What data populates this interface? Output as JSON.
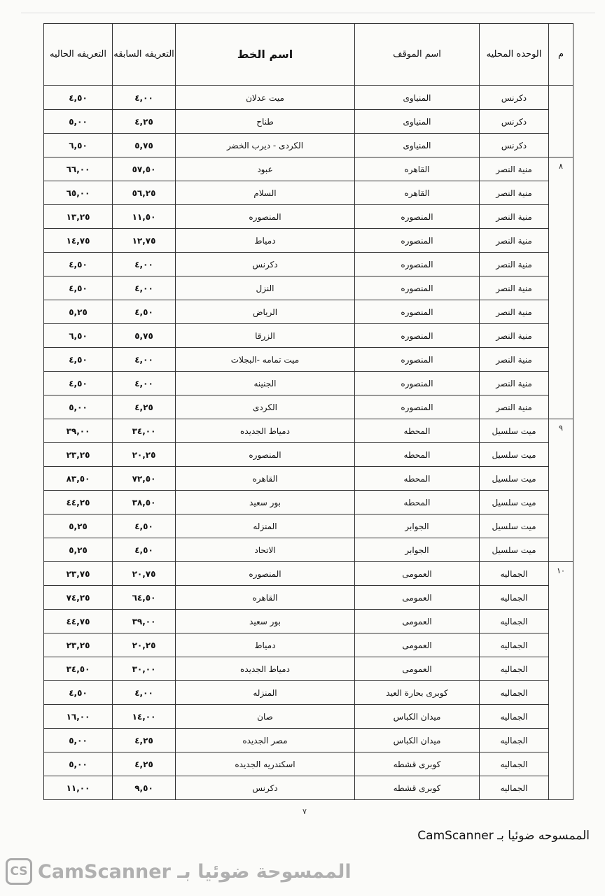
{
  "table": {
    "headers": {
      "m": "م",
      "unit": "الوحده المحليه",
      "stop": "اسم الموقف",
      "line": "اسم الخط",
      "prev": "التعريفه السابقه",
      "curr": "التعريفه الحاليه"
    },
    "groups": [
      {
        "m": "",
        "rows": [
          [
            "دكرنس",
            "المنياوى",
            "ميت عدلان",
            "٤,٠٠",
            "٤,٥٠"
          ],
          [
            "دكرنس",
            "المنياوى",
            "طناح",
            "٤,٢٥",
            "٥,٠٠"
          ],
          [
            "دكرنس",
            "المنياوى",
            "الكردى - ديرب الخضر",
            "٥,٧٥",
            "٦,٥٠"
          ]
        ]
      },
      {
        "m": "٨",
        "rows": [
          [
            "منية النصر",
            "القاهره",
            "عبود",
            "٥٧,٥٠",
            "٦٦,٠٠"
          ],
          [
            "منية النصر",
            "القاهره",
            "السلام",
            "٥٦,٢٥",
            "٦٥,٠٠"
          ],
          [
            "منية النصر",
            "المنصوره",
            "المنصوره",
            "١١,٥٠",
            "١٣,٢٥"
          ],
          [
            "منية النصر",
            "المنصوره",
            "دمياط",
            "١٢,٧٥",
            "١٤,٧٥"
          ],
          [
            "منية النصر",
            "المنصوره",
            "دكرنس",
            "٤,٠٠",
            "٤,٥٠"
          ],
          [
            "منية النصر",
            "المنصوره",
            "النزل",
            "٤,٠٠",
            "٤,٥٠"
          ],
          [
            "منية النصر",
            "المنصوره",
            "الرياض",
            "٤,٥٠",
            "٥,٢٥"
          ],
          [
            "منية النصر",
            "المنصوره",
            "الزرقا",
            "٥,٧٥",
            "٦,٥٠"
          ],
          [
            "منية النصر",
            "المنصوره",
            "ميت تمامه -البجلات",
            "٤,٠٠",
            "٤,٥٠"
          ],
          [
            "منية النصر",
            "المنصوره",
            "الجنينه",
            "٤,٠٠",
            "٤,٥٠"
          ],
          [
            "منية النصر",
            "المنصوره",
            "الكردى",
            "٤,٢٥",
            "٥,٠٠"
          ]
        ]
      },
      {
        "m": "٩",
        "rows": [
          [
            "ميت سلسيل",
            "المحطه",
            "دمياط الجديده",
            "٣٤,٠٠",
            "٣٩,٠٠"
          ],
          [
            "ميت سلسيل",
            "المحطه",
            "المنصوره",
            "٢٠,٢٥",
            "٢٣,٢٥"
          ],
          [
            "ميت سلسيل",
            "المحطه",
            "القاهره",
            "٧٢,٥٠",
            "٨٣,٥٠"
          ],
          [
            "ميت سلسيل",
            "المحطه",
            "بور سعيد",
            "٣٨,٥٠",
            "٤٤,٢٥"
          ],
          [
            "ميت سلسيل",
            "الجوابر",
            "المنزله",
            "٤,٥٠",
            "٥,٢٥"
          ],
          [
            "ميت سلسيل",
            "الجوابر",
            "الاتحاد",
            "٤,٥٠",
            "٥,٢٥"
          ]
        ]
      },
      {
        "m": "١٠",
        "rows": [
          [
            "الجماليه",
            "العمومى",
            "المنصوره",
            "٢٠,٧٥",
            "٢٣,٧٥"
          ],
          [
            "الجماليه",
            "العمومى",
            "القاهره",
            "٦٤,٥٠",
            "٧٤,٢٥"
          ],
          [
            "الجماليه",
            "العمومى",
            "بور سعيد",
            "٣٩,٠٠",
            "٤٤,٧٥"
          ],
          [
            "الجماليه",
            "العمومى",
            "دمياط",
            "٢٠,٢٥",
            "٢٣,٢٥"
          ],
          [
            "الجماليه",
            "العمومى",
            "دمياط الجديده",
            "٣٠,٠٠",
            "٣٤,٥٠"
          ],
          [
            "الجماليه",
            "كوبرى بحارة العيد",
            "المنزله",
            "٤,٠٠",
            "٤,٥٠"
          ],
          [
            "الجماليه",
            "ميدان الكباس",
            "صان",
            "١٤,٠٠",
            "١٦,٠٠"
          ],
          [
            "الجماليه",
            "ميدان الكباس",
            "مصر الجديده",
            "٤,٢٥",
            "٥,٠٠"
          ],
          [
            "الجماليه",
            "كوبرى قشطه",
            "اسكندريه الجديده",
            "٤,٢٥",
            "٥,٠٠"
          ],
          [
            "الجماليه",
            "كوبرى قشطه",
            "دكرنس",
            "٩,٥٠",
            "١١,٠٠"
          ]
        ]
      }
    ]
  },
  "footer": {
    "page_number": "٧",
    "scan_note": "الممسوحه ضوئيا بـ CamScanner",
    "watermark_logo": "CS",
    "watermark_text": "الممسوحة ضوئيا بـ CamScanner"
  }
}
